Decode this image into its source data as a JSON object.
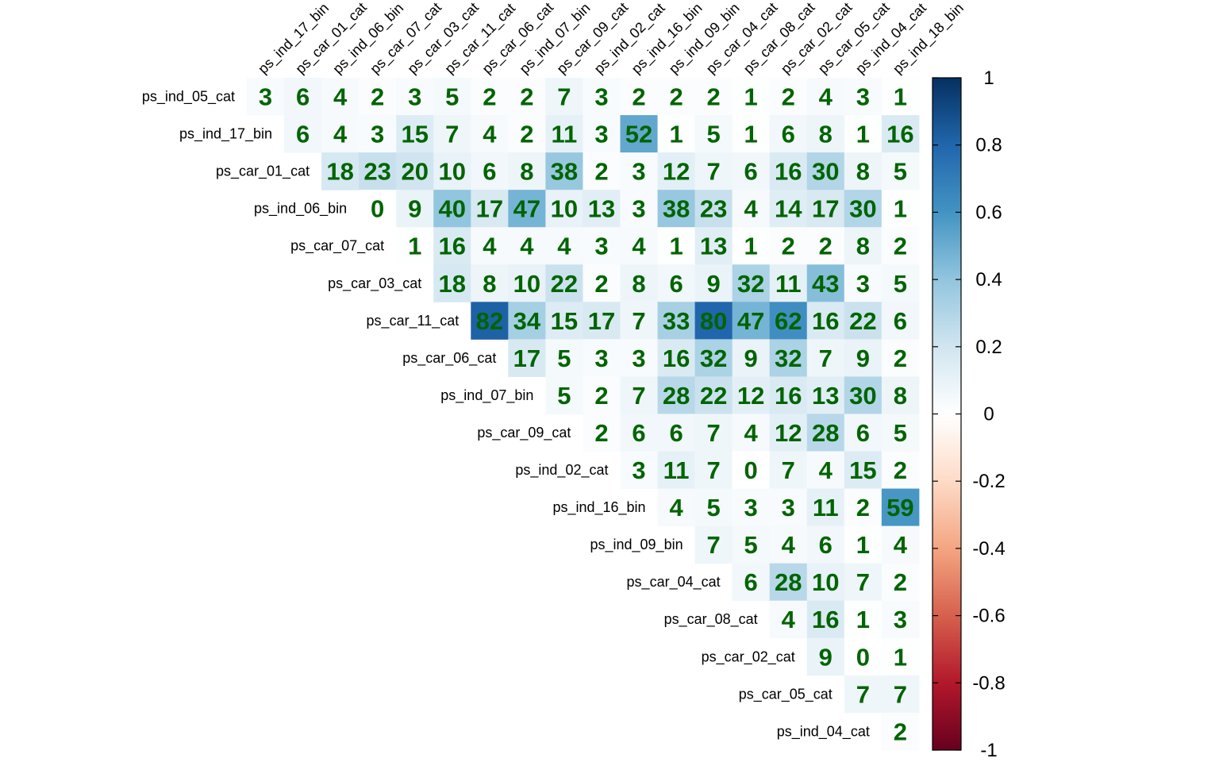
{
  "chart_data": {
    "type": "heatmap",
    "layout": "upper-triangle",
    "rows": [
      "ps_ind_05_cat",
      "ps_ind_17_bin",
      "ps_car_01_cat",
      "ps_ind_06_bin",
      "ps_car_07_cat",
      "ps_car_03_cat",
      "ps_car_11_cat",
      "ps_car_06_cat",
      "ps_ind_07_bin",
      "ps_car_09_cat",
      "ps_ind_02_cat",
      "ps_ind_16_bin",
      "ps_ind_09_bin",
      "ps_car_04_cat",
      "ps_car_08_cat",
      "ps_car_02_cat",
      "ps_car_05_cat",
      "ps_ind_04_cat"
    ],
    "columns": [
      "ps_ind_17_bin",
      "ps_car_01_cat",
      "ps_ind_06_bin",
      "ps_car_07_cat",
      "ps_car_03_cat",
      "ps_car_11_cat",
      "ps_car_06_cat",
      "ps_ind_07_bin",
      "ps_car_09_cat",
      "ps_ind_02_cat",
      "ps_ind_16_bin",
      "ps_ind_09_bin",
      "ps_car_04_cat",
      "ps_car_08_cat",
      "ps_car_02_cat",
      "ps_car_05_cat",
      "ps_ind_04_cat",
      "ps_ind_18_bin"
    ],
    "values": [
      [
        3,
        6,
        4,
        2,
        3,
        5,
        2,
        2,
        7,
        3,
        2,
        2,
        2,
        1,
        2,
        4,
        3,
        1
      ],
      [
        6,
        4,
        3,
        15,
        7,
        4,
        2,
        11,
        3,
        52,
        1,
        5,
        1,
        6,
        8,
        1,
        16
      ],
      [
        18,
        23,
        20,
        10,
        6,
        8,
        38,
        2,
        3,
        12,
        7,
        6,
        16,
        30,
        8,
        5
      ],
      [
        0,
        9,
        40,
        17,
        47,
        10,
        13,
        3,
        38,
        23,
        4,
        14,
        17,
        30,
        1
      ],
      [
        1,
        16,
        4,
        4,
        4,
        3,
        4,
        1,
        13,
        1,
        2,
        2,
        8,
        2
      ],
      [
        18,
        8,
        10,
        22,
        2,
        8,
        6,
        9,
        32,
        11,
        43,
        3,
        5
      ],
      [
        82,
        34,
        15,
        17,
        7,
        33,
        80,
        47,
        62,
        16,
        22,
        6
      ],
      [
        17,
        5,
        3,
        3,
        16,
        32,
        9,
        32,
        7,
        9,
        2
      ],
      [
        5,
        2,
        7,
        28,
        22,
        12,
        16,
        13,
        30,
        8
      ],
      [
        2,
        6,
        6,
        7,
        4,
        12,
        28,
        6,
        5
      ],
      [
        3,
        11,
        7,
        0,
        7,
        4,
        15,
        2
      ],
      [
        4,
        5,
        3,
        3,
        11,
        2,
        59
      ],
      [
        7,
        5,
        4,
        6,
        1,
        4
      ],
      [
        6,
        28,
        10,
        7,
        2
      ],
      [
        4,
        16,
        1,
        3
      ],
      [
        9,
        0,
        1
      ],
      [
        7,
        7
      ],
      [
        2
      ]
    ],
    "value_scale": "percent of correlation",
    "colorbar": {
      "range": [
        -1,
        1
      ],
      "ticks": [
        "1",
        "0.8",
        "0.6",
        "0.4",
        "0.2",
        "0",
        "-0.2",
        "-0.4",
        "-0.6",
        "-0.8",
        "-1"
      ],
      "palette": [
        "#67001F",
        "#B2182B",
        "#D6604D",
        "#F4A582",
        "#FDDBC7",
        "#FFFFFF",
        "#D1E5F0",
        "#92C5DE",
        "#4393C3",
        "#2166AC",
        "#053061"
      ]
    },
    "value_label_color": "#006400"
  }
}
